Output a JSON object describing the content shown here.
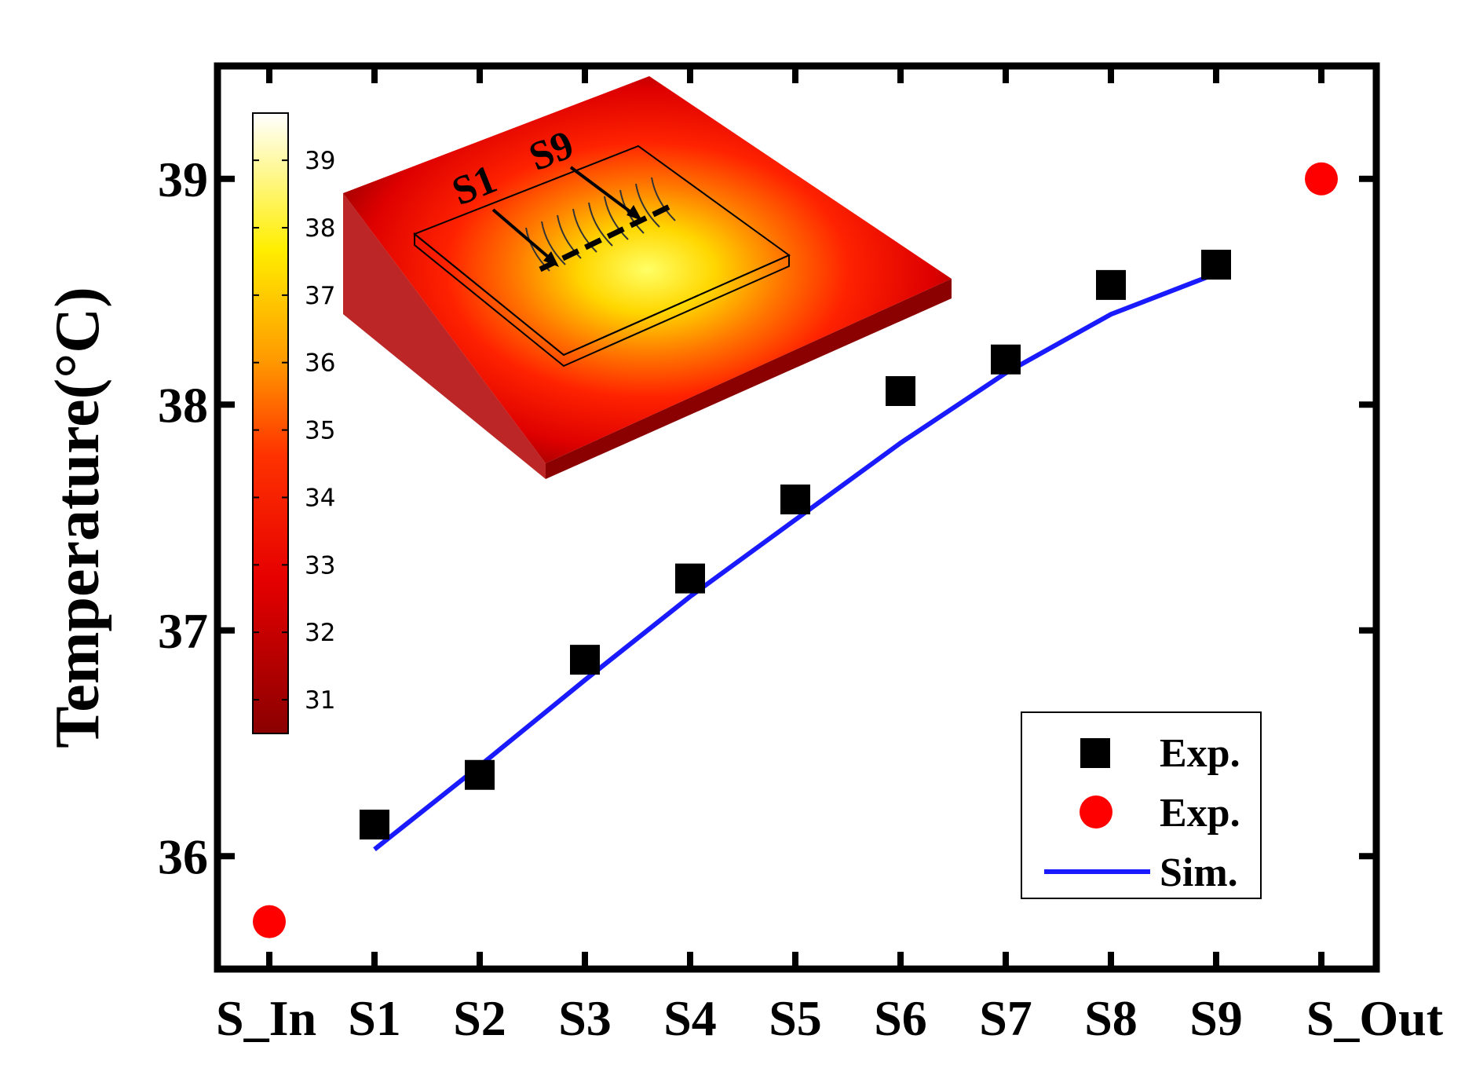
{
  "chart_data": {
    "type": "scatter",
    "title": "",
    "xlabel": "",
    "ylabel": "Temperature(°C)",
    "categories": [
      "S_In",
      "S1",
      "S2",
      "S3",
      "S4",
      "S5",
      "S6",
      "S7",
      "S8",
      "S9",
      "S_Out"
    ],
    "ylim": [
      35.5,
      39.5
    ],
    "yticks": [
      36,
      37,
      38,
      39
    ],
    "series": [
      {
        "name": "Exp.",
        "marker": "square",
        "color": "#000000",
        "x": [
          "S1",
          "S2",
          "S3",
          "S4",
          "S5",
          "S6",
          "S7",
          "S8",
          "S9"
        ],
        "values": [
          36.14,
          36.36,
          36.87,
          37.23,
          37.58,
          38.06,
          38.2,
          38.53,
          38.62
        ]
      },
      {
        "name": "Exp.",
        "marker": "circle",
        "color": "#ff0000",
        "x": [
          "S_In",
          "S_Out"
        ],
        "values": [
          35.71,
          39.0
        ]
      },
      {
        "name": "Sim.",
        "marker": "line",
        "color": "#1a1aff",
        "x": [
          "S1",
          "S2",
          "S3",
          "S4",
          "S5",
          "S6",
          "S7",
          "S8",
          "S9"
        ],
        "values": [
          36.03,
          36.4,
          36.78,
          37.15,
          37.49,
          37.83,
          38.14,
          38.4,
          38.58
        ]
      }
    ],
    "legend": {
      "position": "bottom-right",
      "entries": [
        "Exp.",
        "Exp.",
        "Sim."
      ]
    },
    "inset": {
      "labels": [
        "S1",
        "S9"
      ],
      "colorbar_ticks": [
        "39",
        "38",
        "37",
        "36",
        "35",
        "34",
        "33",
        "32",
        "31"
      ],
      "colorbar_range": [
        30.5,
        39.7
      ]
    }
  }
}
